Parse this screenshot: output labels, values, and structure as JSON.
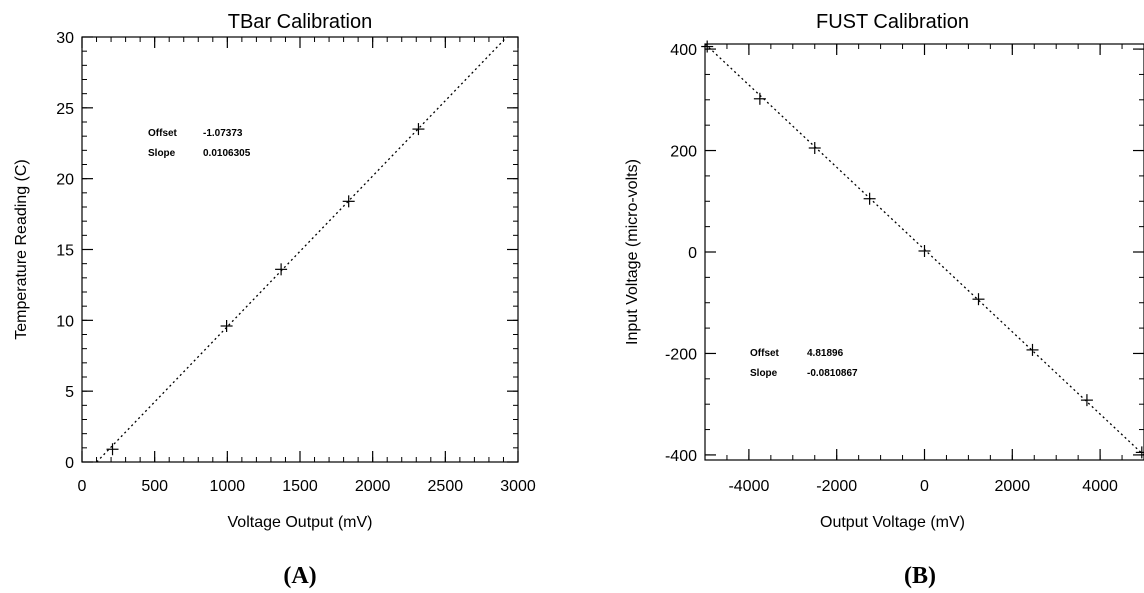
{
  "chart_data": [
    {
      "type": "scatter",
      "title": "TBar Calibration",
      "xlabel": "Voltage Output (mV)",
      "ylabel": "Temperature Reading (C)",
      "xlim": [
        0,
        3000
      ],
      "ylim": [
        0,
        30
      ],
      "xticks": [
        "0",
        "500",
        "1000",
        "1500",
        "2000",
        "2500",
        "3000"
      ],
      "yticks": [
        "0",
        "5",
        "10",
        "15",
        "20",
        "25",
        "30"
      ],
      "points": [
        {
          "x": 210,
          "y": 0.9
        },
        {
          "x": 995,
          "y": 9.6
        },
        {
          "x": 1370,
          "y": 13.6
        },
        {
          "x": 1835,
          "y": 18.4
        },
        {
          "x": 2315,
          "y": 23.5
        }
      ],
      "fit": {
        "offset": -1.07373,
        "slope": 0.0106305
      },
      "annotations": [
        {
          "label": "Offset",
          "value": "-1.07373"
        },
        {
          "label": "Slope",
          "value": "0.0106305"
        }
      ],
      "panel_label": "(A)"
    },
    {
      "type": "scatter",
      "title": "FUST Calibration",
      "xlabel": "Output Voltage (mV)",
      "ylabel": "Input Voltage (micro-volts)",
      "xlim": [
        -5000,
        5000
      ],
      "ylim": [
        -410,
        410
      ],
      "xticks": [
        "-4000",
        "-2000",
        "0",
        "2000",
        "4000"
      ],
      "yticks": [
        "400",
        "200",
        "0",
        "-200",
        "-400"
      ],
      "points": [
        {
          "x": -4950,
          "y": 405
        },
        {
          "x": -3750,
          "y": 302
        },
        {
          "x": -2500,
          "y": 205
        },
        {
          "x": -1250,
          "y": 105
        },
        {
          "x": 0,
          "y": 2
        },
        {
          "x": 1230,
          "y": -93
        },
        {
          "x": 2460,
          "y": -193
        },
        {
          "x": 3700,
          "y": -292
        },
        {
          "x": 4950,
          "y": -395
        }
      ],
      "fit": {
        "offset": 4.81896,
        "slope": -0.0810867
      },
      "annotations": [
        {
          "label": "Offset",
          "value": "4.81896"
        },
        {
          "label": "Slope",
          "value": "-0.0810867"
        }
      ],
      "panel_label": "(B)"
    }
  ]
}
